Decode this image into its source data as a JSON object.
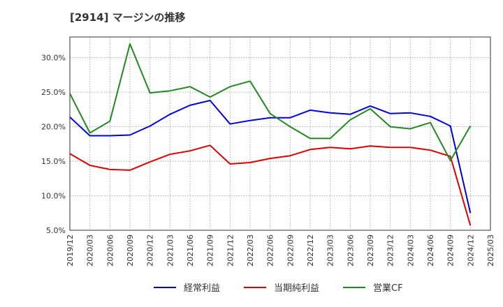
{
  "chart_data": {
    "type": "line",
    "title": "[2914]  マージンの推移",
    "xlabel": "",
    "ylabel": "",
    "x_ticks": [
      "2019/12",
      "2020/03",
      "2020/06",
      "2020/09",
      "2020/12",
      "2021/03",
      "2021/06",
      "2021/09",
      "2021/12",
      "2022/03",
      "2022/06",
      "2022/09",
      "2022/12",
      "2023/03",
      "2023/06",
      "2023/09",
      "2023/12",
      "2024/03",
      "2024/06",
      "2024/09",
      "2024/12",
      "2025/03"
    ],
    "y_ticks": [
      5.0,
      10.0,
      15.0,
      20.0,
      25.0,
      30.0
    ],
    "y_tick_labels": [
      "5.0%",
      "10.0%",
      "15.0%",
      "20.0%",
      "25.0%",
      "30.0%"
    ],
    "ylim": [
      5.0,
      33.0
    ],
    "grid": true,
    "legend_position": "bottom",
    "series": [
      {
        "name": "経常利益",
        "color": "#0000dd",
        "x": [
          "2019/12",
          "2020/03",
          "2020/06",
          "2020/09",
          "2020/12",
          "2021/03",
          "2021/06",
          "2021/09",
          "2021/12",
          "2022/03",
          "2022/06",
          "2022/09",
          "2022/12",
          "2023/03",
          "2023/06",
          "2023/09",
          "2023/12",
          "2024/03",
          "2024/06",
          "2024/09",
          "2024/12"
        ],
        "values": [
          21.4,
          18.7,
          18.7,
          18.8,
          20.1,
          21.8,
          23.1,
          23.8,
          20.4,
          20.9,
          21.3,
          21.3,
          22.4,
          22.0,
          21.8,
          23.0,
          21.9,
          22.0,
          21.5,
          20.1,
          7.5
        ]
      },
      {
        "name": "当期純利益",
        "color": "#dd0000",
        "x": [
          "2019/12",
          "2020/03",
          "2020/06",
          "2020/09",
          "2020/12",
          "2021/03",
          "2021/06",
          "2021/09",
          "2021/12",
          "2022/03",
          "2022/06",
          "2022/09",
          "2022/12",
          "2023/03",
          "2023/06",
          "2023/09",
          "2023/12",
          "2024/03",
          "2024/06",
          "2024/09",
          "2024/12"
        ],
        "values": [
          16.1,
          14.4,
          13.8,
          13.7,
          14.9,
          16.0,
          16.5,
          17.3,
          14.6,
          14.8,
          15.4,
          15.8,
          16.7,
          17.0,
          16.8,
          17.2,
          17.0,
          17.0,
          16.6,
          15.7,
          5.7
        ]
      },
      {
        "name": "営業CF",
        "color": "#228822",
        "x": [
          "2019/12",
          "2020/03",
          "2020/06",
          "2020/09",
          "2020/12",
          "2021/03",
          "2021/06",
          "2021/09",
          "2021/12",
          "2022/03",
          "2022/06",
          "2022/09",
          "2022/12",
          "2023/03",
          "2023/06",
          "2023/09",
          "2023/12",
          "2024/03",
          "2024/06",
          "2024/09",
          "2024/12"
        ],
        "values": [
          24.8,
          19.1,
          20.8,
          32.0,
          24.9,
          25.2,
          25.8,
          24.3,
          25.8,
          26.6,
          21.9,
          20.0,
          18.3,
          18.3,
          21.0,
          22.6,
          20.0,
          19.7,
          20.6,
          15.1,
          20.1
        ]
      }
    ]
  }
}
